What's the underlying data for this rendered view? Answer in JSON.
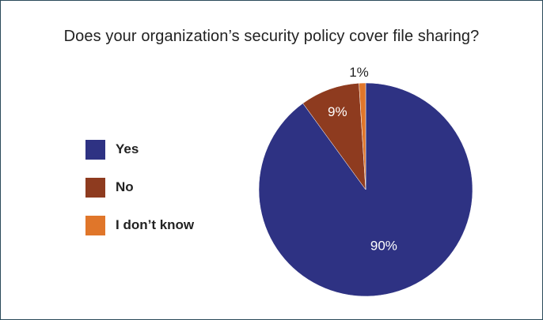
{
  "chart_data": {
    "type": "pie",
    "title": "Does your organization’s security policy cover file sharing?",
    "categories": [
      "Yes",
      "No",
      "I don’t know"
    ],
    "values": [
      90,
      9,
      1
    ],
    "data_labels": [
      "90%",
      "9%",
      "1%"
    ],
    "colors": [
      "#2e3283",
      "#8e3b1f",
      "#e0762a"
    ],
    "label_colors": [
      "#ffffff",
      "#ffffff",
      "#222222"
    ],
    "legend_position": "left"
  }
}
